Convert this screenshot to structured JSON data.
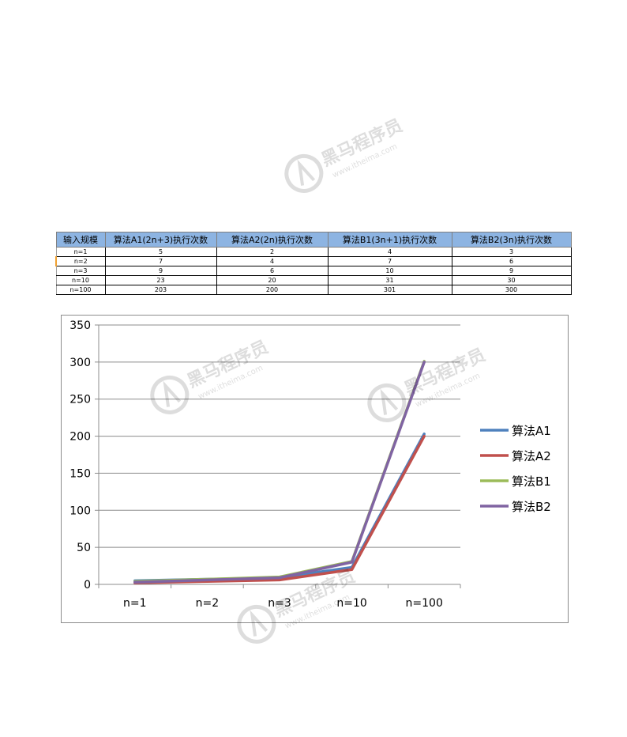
{
  "table": {
    "headers": [
      "输入规模",
      "算法A1(2n+3)执行次数",
      "算法A2(2n)执行次数",
      "算法B1(3n+1)执行次数",
      "算法B2(3n)执行次数"
    ],
    "rows": [
      [
        "n=1",
        "5",
        "2",
        "4",
        "3"
      ],
      [
        "n=2",
        "7",
        "4",
        "7",
        "6"
      ],
      [
        "n=3",
        "9",
        "6",
        "10",
        "9"
      ],
      [
        "n=10",
        "23",
        "20",
        "31",
        "30"
      ],
      [
        "n=100",
        "203",
        "200",
        "301",
        "300"
      ]
    ]
  },
  "watermark": {
    "brand": "黑马程序员",
    "site": "www.itheima.com"
  },
  "chart_data": {
    "type": "line",
    "categories": [
      "n=1",
      "n=2",
      "n=3",
      "n=10",
      "n=100"
    ],
    "series": [
      {
        "name": "算法A1",
        "values": [
          5,
          7,
          9,
          23,
          203
        ],
        "color": "#4f81bd"
      },
      {
        "name": "算法A2",
        "values": [
          2,
          4,
          6,
          20,
          200
        ],
        "color": "#c0504d"
      },
      {
        "name": "算法B1",
        "values": [
          4,
          7,
          10,
          31,
          301
        ],
        "color": "#9bbb59"
      },
      {
        "name": "算法B2",
        "values": [
          3,
          6,
          9,
          30,
          300
        ],
        "color": "#8064a2"
      }
    ],
    "ylim": [
      0,
      350
    ],
    "yticks": [
      0,
      50,
      100,
      150,
      200,
      250,
      300,
      350
    ],
    "grid": true,
    "legend": "right",
    "title": "",
    "xlabel": "",
    "ylabel": ""
  }
}
